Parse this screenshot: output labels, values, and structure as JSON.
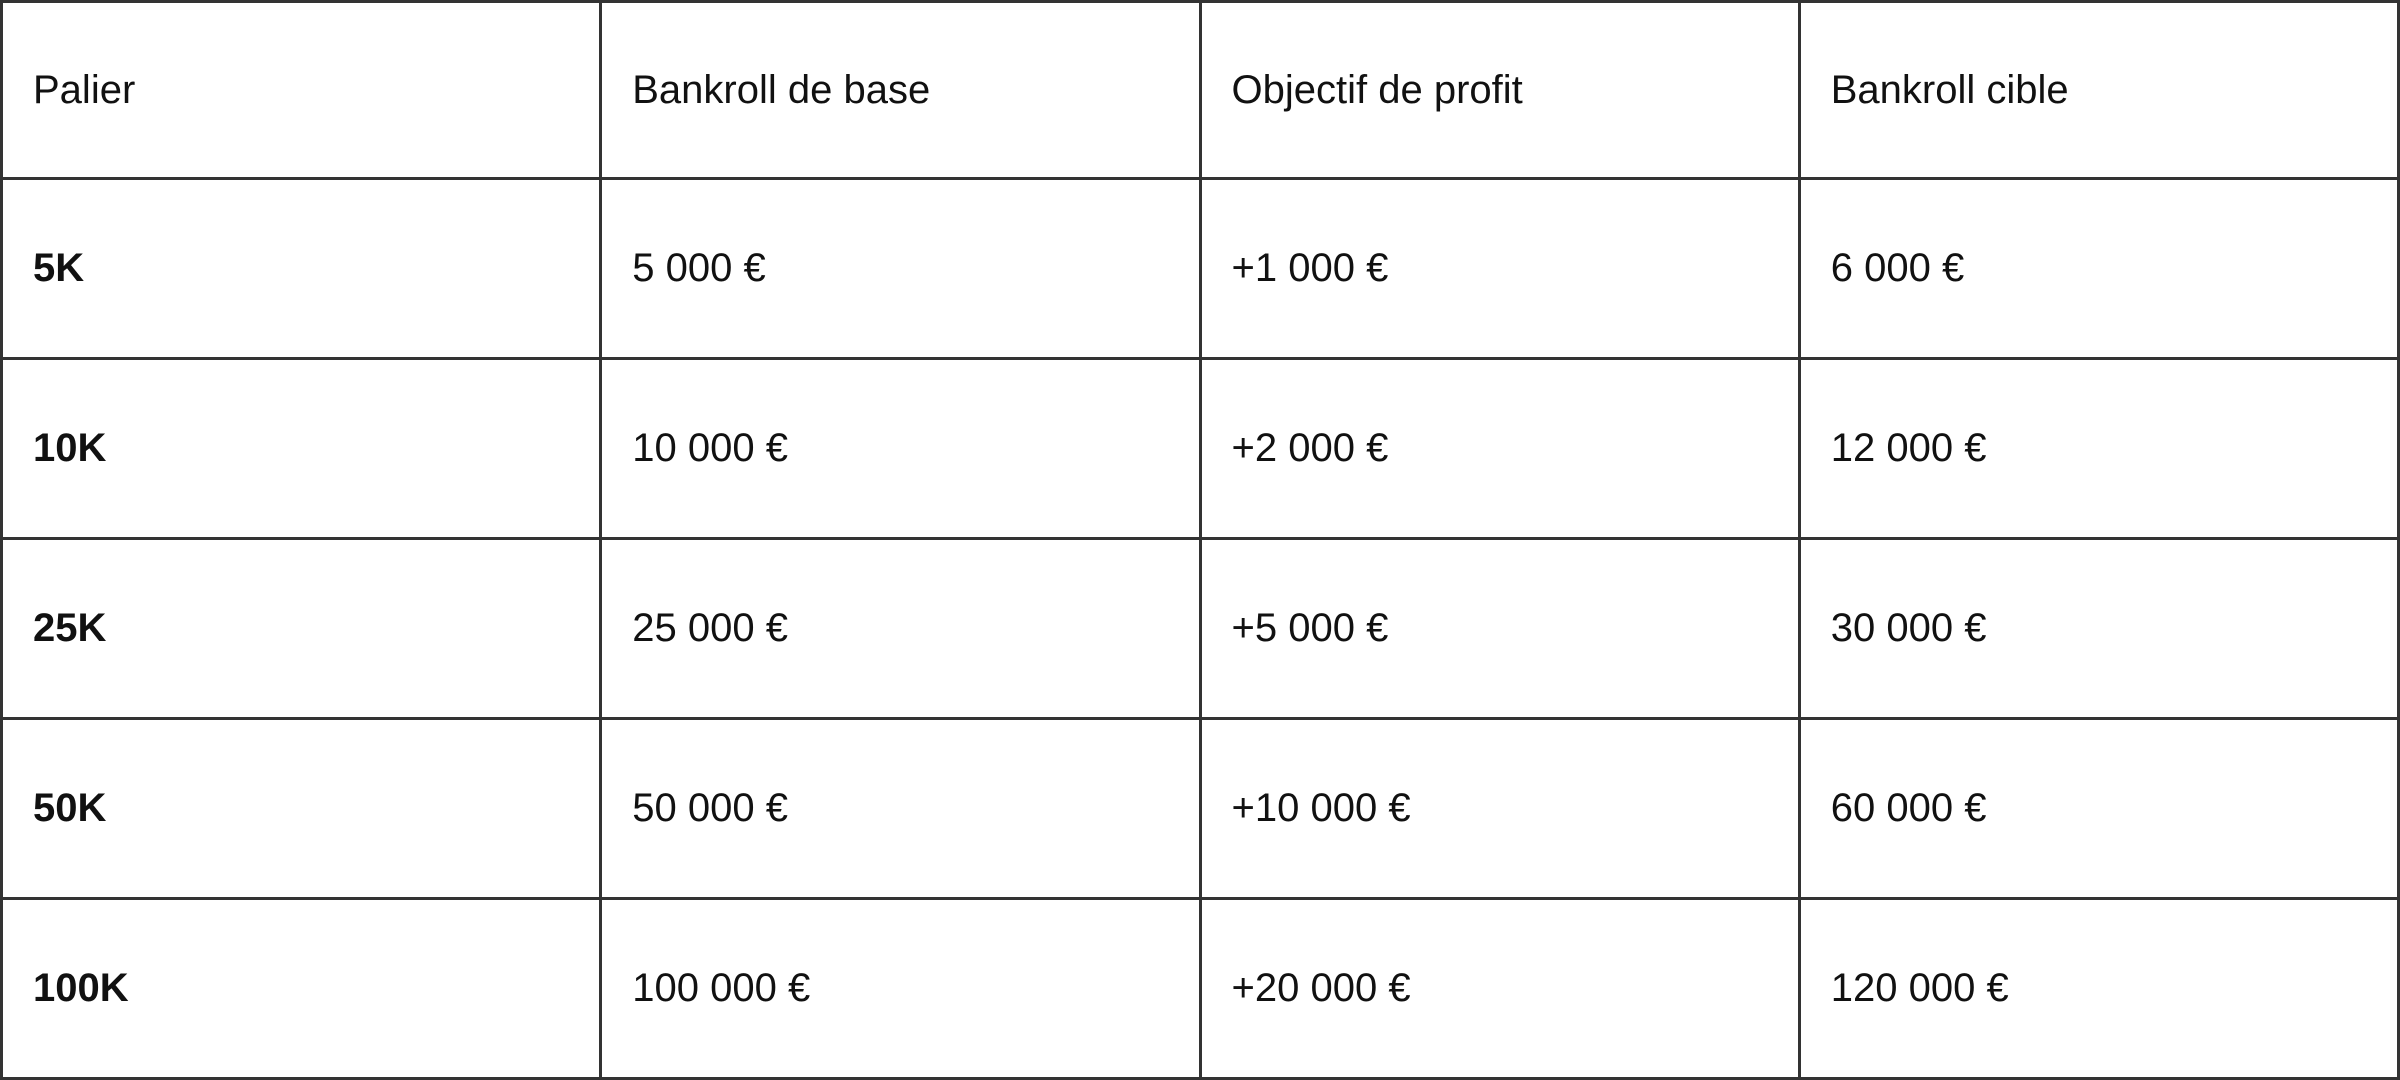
{
  "table": {
    "headers": [
      "Palier",
      "Bankroll de base",
      "Objectif de profit",
      "Bankroll cible"
    ],
    "rows": [
      [
        "5K",
        "5 000 €",
        "+1 000 €",
        "6 000 €"
      ],
      [
        "10K",
        "10 000 €",
        "+2 000 €",
        "12 000 €"
      ],
      [
        "25K",
        "25 000 €",
        "+5 000 €",
        "30 000 €"
      ],
      [
        "50K",
        "50 000 €",
        "+10 000 €",
        "60 000 €"
      ],
      [
        "100K",
        "100 000 €",
        "+20 000 €",
        "120 000 €"
      ]
    ]
  }
}
